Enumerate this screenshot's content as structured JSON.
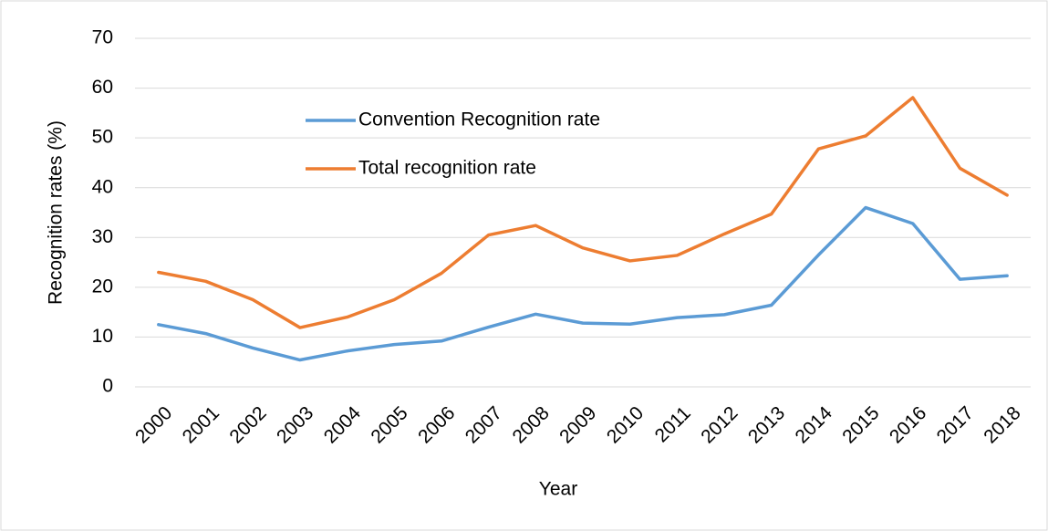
{
  "chart_data": {
    "type": "line",
    "x_label": "Year",
    "y_label": "Recognition rates (%)",
    "categories": [
      "2000",
      "2001",
      "2002",
      "2003",
      "2004",
      "2005",
      "2006",
      "2007",
      "2008",
      "2009",
      "2010",
      "2011",
      "2012",
      "2013",
      "2014",
      "2015",
      "2016",
      "2017",
      "2018"
    ],
    "series": [
      {
        "name": "Convention Recognition rate",
        "color": "#5b9bd5",
        "values": [
          12.5,
          10.7,
          7.8,
          5.4,
          7.2,
          8.5,
          9.2,
          12.0,
          14.6,
          12.8,
          12.6,
          13.9,
          14.5,
          16.4,
          26.5,
          36.0,
          32.8,
          21.6,
          22.3
        ]
      },
      {
        "name": "Total recognition rate",
        "color": "#ed7d31",
        "values": [
          23.0,
          21.2,
          17.5,
          11.9,
          14.0,
          17.5,
          22.8,
          30.5,
          32.4,
          27.9,
          25.3,
          26.4,
          30.7,
          34.7,
          47.8,
          50.4,
          58.1,
          43.9,
          38.5
        ]
      }
    ],
    "ylim": [
      0,
      70
    ],
    "yticks": [
      0,
      10,
      20,
      30,
      40,
      50,
      60,
      70
    ],
    "grid": true,
    "legend": "upper left"
  }
}
